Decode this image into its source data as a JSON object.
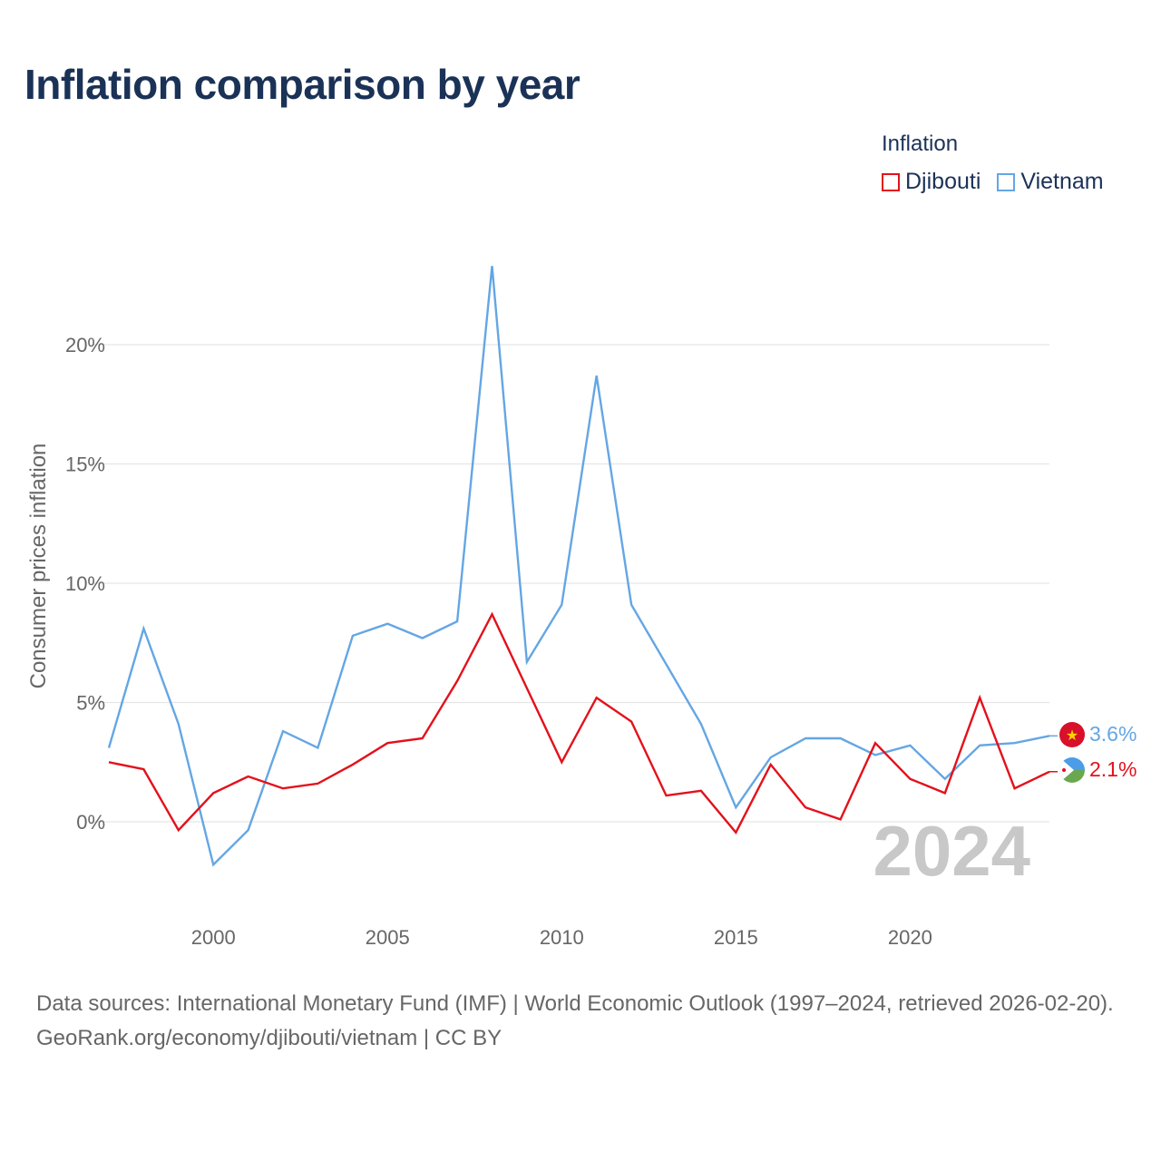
{
  "title": "Inflation comparison by year",
  "legend": {
    "title": "Inflation",
    "items": [
      {
        "label": "Djibouti",
        "color": "#e3111b"
      },
      {
        "label": "Vietnam",
        "color": "#64a6e4"
      }
    ]
  },
  "chart_data": {
    "type": "line",
    "ylabel": "Consumer prices inflation",
    "xlabel": "",
    "x": [
      1997,
      1998,
      1999,
      2000,
      2001,
      2002,
      2003,
      2004,
      2005,
      2006,
      2007,
      2008,
      2009,
      2010,
      2011,
      2012,
      2013,
      2014,
      2015,
      2016,
      2017,
      2018,
      2019,
      2020,
      2021,
      2022,
      2023,
      2024
    ],
    "xlim": [
      1997,
      2024
    ],
    "ylim": [
      -3.5,
      24
    ],
    "x_ticks": [
      2000,
      2005,
      2010,
      2015,
      2020
    ],
    "y_ticks": [
      0,
      5,
      10,
      15,
      20
    ],
    "y_tick_labels": [
      "0%",
      "5%",
      "10%",
      "15%",
      "20%"
    ],
    "x_tick_labels": [
      "2000",
      "2005",
      "2010",
      "2015",
      "2020"
    ],
    "grid": true,
    "year_watermark": "2024",
    "series": [
      {
        "name": "Djibouti",
        "color": "#e3111b",
        "end_label": "2.1%",
        "values": [
          2.5,
          2.2,
          -0.35,
          1.2,
          1.9,
          1.4,
          1.6,
          2.4,
          3.3,
          3.5,
          5.9,
          8.7,
          5.6,
          2.5,
          5.2,
          4.2,
          1.1,
          1.3,
          -0.45,
          2.4,
          0.6,
          0.1,
          3.3,
          1.8,
          1.2,
          5.2,
          1.4,
          2.1
        ]
      },
      {
        "name": "Vietnam",
        "color": "#64a6e4",
        "end_label": "3.6%",
        "values": [
          3.1,
          8.1,
          4.1,
          -1.8,
          -0.35,
          3.8,
          3.1,
          7.8,
          8.3,
          7.7,
          8.4,
          23.3,
          6.7,
          9.1,
          18.7,
          9.1,
          6.6,
          4.1,
          0.6,
          2.7,
          3.5,
          3.5,
          2.8,
          3.2,
          1.8,
          3.2,
          3.3,
          3.6
        ]
      }
    ]
  },
  "source": {
    "line1": "Data sources: International Monetary Fund (IMF) | World Economic Outlook (1997–2024, retrieved 2026-02-20).",
    "line2": "GeoRank.org/economy/djibouti/vietnam | CC BY"
  }
}
